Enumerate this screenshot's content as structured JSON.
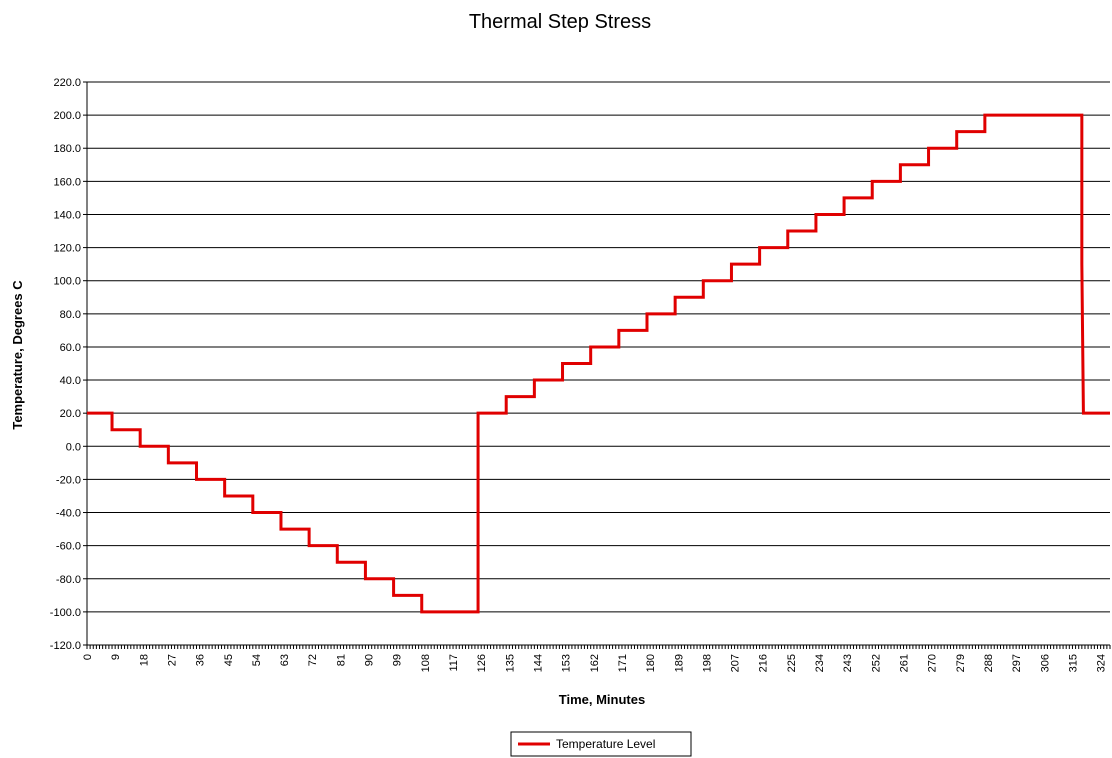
{
  "chart_data": {
    "type": "line",
    "title": "Thermal Step Stress",
    "xlabel": "Time, Minutes",
    "ylabel": "Temperature, Degrees C",
    "xlim": [
      0,
      327
    ],
    "ylim": [
      -120,
      220
    ],
    "y_ticks": [
      "-120.0",
      "-100.0",
      "-80.0",
      "-60.0",
      "-40.0",
      "-20.0",
      "0.0",
      "20.0",
      "40.0",
      "60.0",
      "80.0",
      "100.0",
      "120.0",
      "140.0",
      "160.0",
      "180.0",
      "200.0",
      "220.0"
    ],
    "x_ticks": [
      "0",
      "9",
      "18",
      "27",
      "36",
      "45",
      "54",
      "63",
      "72",
      "81",
      "90",
      "99",
      "108",
      "117",
      "126",
      "135",
      "144",
      "153",
      "162",
      "171",
      "180",
      "189",
      "198",
      "207",
      "216",
      "225",
      "234",
      "243",
      "252",
      "261",
      "270",
      "279",
      "288",
      "297",
      "306",
      "315",
      "324"
    ],
    "grid": "horizontal",
    "legend_position": "bottom",
    "series": [
      {
        "name": "Temperature Level",
        "color": "#e00000",
        "points": [
          [
            0,
            20
          ],
          [
            8,
            20
          ],
          [
            8,
            10
          ],
          [
            17,
            10
          ],
          [
            17,
            0
          ],
          [
            26,
            0
          ],
          [
            26,
            -10
          ],
          [
            35,
            -10
          ],
          [
            35,
            -20
          ],
          [
            44,
            -20
          ],
          [
            44,
            -30
          ],
          [
            53,
            -30
          ],
          [
            53,
            -40
          ],
          [
            62,
            -40
          ],
          [
            62,
            -50
          ],
          [
            71,
            -50
          ],
          [
            71,
            -60
          ],
          [
            80,
            -60
          ],
          [
            80,
            -70
          ],
          [
            89,
            -70
          ],
          [
            89,
            -80
          ],
          [
            98,
            -80
          ],
          [
            98,
            -90
          ],
          [
            107,
            -90
          ],
          [
            107,
            -100
          ],
          [
            125,
            -100
          ],
          [
            125,
            20
          ],
          [
            134,
            20
          ],
          [
            134,
            30
          ],
          [
            143,
            30
          ],
          [
            143,
            40
          ],
          [
            152,
            40
          ],
          [
            152,
            50
          ],
          [
            161,
            50
          ],
          [
            161,
            60
          ],
          [
            170,
            60
          ],
          [
            170,
            70
          ],
          [
            179,
            70
          ],
          [
            179,
            80
          ],
          [
            188,
            80
          ],
          [
            188,
            90
          ],
          [
            197,
            90
          ],
          [
            197,
            100
          ],
          [
            206,
            100
          ],
          [
            206,
            110
          ],
          [
            215,
            110
          ],
          [
            215,
            120
          ],
          [
            224,
            120
          ],
          [
            224,
            130
          ],
          [
            233,
            130
          ],
          [
            233,
            140
          ],
          [
            242,
            140
          ],
          [
            242,
            150
          ],
          [
            251,
            150
          ],
          [
            251,
            160
          ],
          [
            260,
            160
          ],
          [
            260,
            170
          ],
          [
            269,
            170
          ],
          [
            269,
            180
          ],
          [
            278,
            180
          ],
          [
            278,
            190
          ],
          [
            287,
            190
          ],
          [
            287,
            200
          ],
          [
            296,
            200
          ],
          [
            296,
            200
          ],
          [
            305,
            200
          ],
          [
            305,
            200
          ],
          [
            306,
            200
          ],
          [
            306,
            200
          ],
          [
            307,
            200
          ],
          [
            308,
            200
          ],
          [
            309,
            200
          ],
          [
            310,
            200
          ],
          [
            311,
            200
          ],
          [
            312,
            200
          ],
          [
            313,
            200
          ],
          [
            314,
            200
          ],
          [
            315,
            200
          ],
          [
            316,
            200
          ],
          [
            317,
            200
          ],
          [
            317.5,
            200
          ],
          [
            318,
            200
          ],
          [
            318,
            110
          ],
          [
            318.5,
            20
          ],
          [
            327,
            20
          ]
        ]
      }
    ]
  }
}
